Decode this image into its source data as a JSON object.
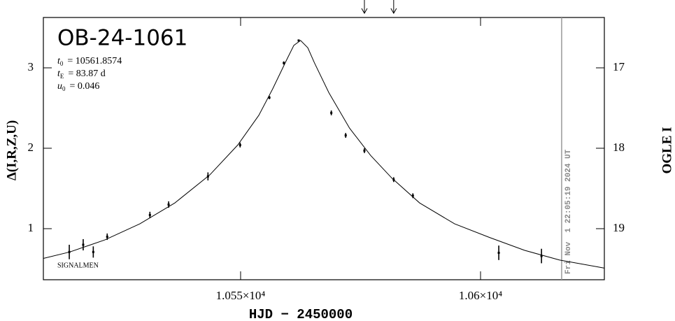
{
  "chart_data": {
    "type": "scatter",
    "title": "OB-24-1061",
    "params": [
      {
        "symbol": "t",
        "sub": "0",
        "text": "= 10561.8574"
      },
      {
        "symbol": "t",
        "sub": "E",
        "text": "= 83.87 d"
      },
      {
        "symbol": "u",
        "sub": "0",
        "text": "= 0.046"
      }
    ],
    "x_label": "HJD − 2450000",
    "y_label": "Δ(I,R,Z,U)",
    "y2_label": "OGLE I",
    "annotation": "SIGNALMEN",
    "date_label": "Fri Nov  1 22:05:19 2024 UT",
    "date_x": 10616.9,
    "arrows_x": [
      10575.8,
      10581.9
    ],
    "xlim": [
      10508.9,
      10625.8
    ],
    "ylim": [
      0.365,
      3.626
    ],
    "y2lim": [
      19.635,
      16.374
    ],
    "xticks": [
      {
        "value": 10550,
        "label": "1.055×10⁴"
      },
      {
        "value": 10600,
        "label": "1.06×10⁴"
      }
    ],
    "yticks": [
      1,
      2,
      3
    ],
    "y2ticks": [
      17,
      18,
      19
    ],
    "series": [
      {
        "name": "data",
        "color": "#000000",
        "x": [
          10514.3,
          10517.2,
          10519.3,
          10522.2,
          10531.1,
          10535.0,
          10543.2,
          10549.9,
          10556.0,
          10559.0,
          10562.1,
          10568.9,
          10571.9,
          10575.8,
          10581.9,
          10585.9,
          10603.8,
          10612.7
        ],
        "values": [
          0.71,
          0.8,
          0.71,
          0.9,
          1.17,
          1.3,
          1.65,
          2.04,
          2.63,
          3.06,
          3.34,
          2.44,
          2.16,
          1.97,
          1.61,
          1.41,
          0.7,
          0.66
        ],
        "errors": [
          0.09,
          0.07,
          0.07,
          0.04,
          0.04,
          0.04,
          0.05,
          0.03,
          0.02,
          0.02,
          0.01,
          0.03,
          0.03,
          0.03,
          0.03,
          0.03,
          0.09,
          0.09
        ]
      },
      {
        "name": "model",
        "color": "#000000",
        "line": true,
        "x": [
          10508.9,
          10514.4,
          10521.7,
          10529.0,
          10536.3,
          10543.6,
          10549.4,
          10553.8,
          10556.7,
          10559.6,
          10561.1,
          10562.5,
          10564.0,
          10565.4,
          10568.4,
          10572.7,
          10577.1,
          10581.5,
          10587.3,
          10594.6,
          10601.9,
          10609.2,
          10616.5,
          10625.8
        ],
        "values": [
          0.63,
          0.71,
          0.86,
          1.06,
          1.32,
          1.67,
          2.04,
          2.41,
          2.74,
          3.1,
          3.28,
          3.34,
          3.25,
          3.06,
          2.69,
          2.25,
          1.91,
          1.63,
          1.32,
          1.06,
          0.89,
          0.73,
          0.61,
          0.51
        ]
      }
    ]
  }
}
